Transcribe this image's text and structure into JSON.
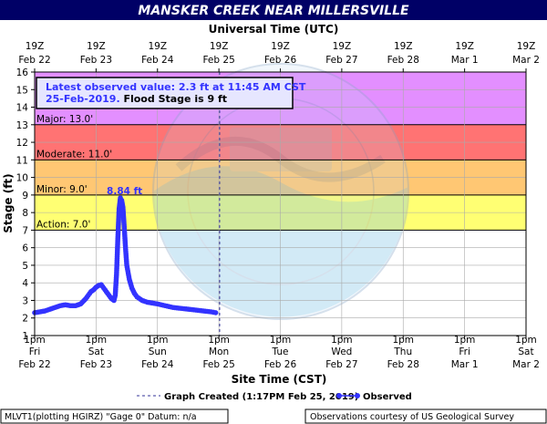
{
  "chart_data": {
    "type": "line",
    "title": "MANSKER CREEK NEAR MILLERSVILLE",
    "top_axis_title": "Universal Time (UTC)",
    "xlabel": "Site Time (CST)",
    "ylabel": "Stage (ft)",
    "ylim": [
      1,
      16
    ],
    "y_ticks": [
      1,
      2,
      3,
      4,
      5,
      6,
      7,
      8,
      9,
      10,
      11,
      12,
      13,
      14,
      15,
      16
    ],
    "xlim": [
      "2019-02-22 13:00",
      "2019-03-02 13:00"
    ],
    "grid": true,
    "top_ticks": [
      {
        "t": "2019-02-22 13:00",
        "l1": "19Z",
        "l2": "Feb 22"
      },
      {
        "t": "2019-02-23 13:00",
        "l1": "19Z",
        "l2": "Feb 23"
      },
      {
        "t": "2019-02-24 13:00",
        "l1": "19Z",
        "l2": "Feb 24"
      },
      {
        "t": "2019-02-25 13:00",
        "l1": "19Z",
        "l2": "Feb 25"
      },
      {
        "t": "2019-02-26 13:00",
        "l1": "19Z",
        "l2": "Feb 26"
      },
      {
        "t": "2019-02-27 13:00",
        "l1": "19Z",
        "l2": "Feb 27"
      },
      {
        "t": "2019-02-28 13:00",
        "l1": "19Z",
        "l2": "Feb 28"
      },
      {
        "t": "2019-03-01 13:00",
        "l1": "19Z",
        "l2": "Mar  1"
      },
      {
        "t": "2019-03-02 13:00",
        "l1": "19Z",
        "l2": "Mar  2"
      }
    ],
    "bottom_ticks": [
      {
        "t": "2019-02-22 13:00",
        "l1": "1pm",
        "l2": "Fri",
        "l3": "Feb 22"
      },
      {
        "t": "2019-02-23 13:00",
        "l1": "1pm",
        "l2": "Sat",
        "l3": "Feb 23"
      },
      {
        "t": "2019-02-24 13:00",
        "l1": "1pm",
        "l2": "Sun",
        "l3": "Feb 24"
      },
      {
        "t": "2019-02-25 13:00",
        "l1": "1pm",
        "l2": "Mon",
        "l3": "Feb 25"
      },
      {
        "t": "2019-02-26 13:00",
        "l1": "1pm",
        "l2": "Tue",
        "l3": "Feb 26"
      },
      {
        "t": "2019-02-27 13:00",
        "l1": "1pm",
        "l2": "Wed",
        "l3": "Feb 27"
      },
      {
        "t": "2019-02-28 13:00",
        "l1": "1pm",
        "l2": "Thu",
        "l3": "Feb 28"
      },
      {
        "t": "2019-03-01 13:00",
        "l1": "1pm",
        "l2": "Fri",
        "l3": "Mar  1"
      },
      {
        "t": "2019-03-02 13:00",
        "l1": "1pm",
        "l2": "Sat",
        "l3": "Mar  2"
      }
    ],
    "bands": [
      {
        "name": "Action",
        "label": "Action: 7.0'",
        "from": 7,
        "to": 9,
        "color": "#ffff00"
      },
      {
        "name": "Minor",
        "label": "Minor: 9.0'",
        "from": 9,
        "to": 11,
        "color": "#ff9900"
      },
      {
        "name": "Moderate",
        "label": "Moderate: 11.0'",
        "from": 11,
        "to": 13,
        "color": "#ff0000"
      },
      {
        "name": "Major",
        "label": "Major: 13.0'",
        "from": 13,
        "to": 16,
        "color": "#cc33ff"
      }
    ],
    "latest_box": {
      "line1": "Latest observed value: 2.3  ft at 11:45 AM CST",
      "line2_date": "25-Feb-2019.",
      "line2_rest": "  Flood Stage is 9 ft"
    },
    "peak_label": "8.84 ft",
    "graph_created_time": "2019-02-25 13:17",
    "series": [
      {
        "name": "Observed",
        "color": "#3333ff",
        "points": [
          [
            "2019-02-22 13:00",
            2.3
          ],
          [
            "2019-02-22 15:00",
            2.35
          ],
          [
            "2019-02-22 17:00",
            2.4
          ],
          [
            "2019-02-22 19:00",
            2.5
          ],
          [
            "2019-02-22 21:00",
            2.6
          ],
          [
            "2019-02-22 23:00",
            2.7
          ],
          [
            "2019-02-23 01:00",
            2.75
          ],
          [
            "2019-02-23 03:00",
            2.7
          ],
          [
            "2019-02-23 05:00",
            2.7
          ],
          [
            "2019-02-23 07:00",
            2.8
          ],
          [
            "2019-02-23 09:00",
            3.1
          ],
          [
            "2019-02-23 10:00",
            3.3
          ],
          [
            "2019-02-23 11:00",
            3.5
          ],
          [
            "2019-02-23 12:00",
            3.6
          ],
          [
            "2019-02-23 13:00",
            3.75
          ],
          [
            "2019-02-23 14:00",
            3.85
          ],
          [
            "2019-02-23 15:00",
            3.9
          ],
          [
            "2019-02-23 16:00",
            3.7
          ],
          [
            "2019-02-23 17:00",
            3.5
          ],
          [
            "2019-02-23 18:00",
            3.3
          ],
          [
            "2019-02-23 19:00",
            3.1
          ],
          [
            "2019-02-23 20:00",
            3.0
          ],
          [
            "2019-02-23 20:30",
            3.3
          ],
          [
            "2019-02-23 21:00",
            4.5
          ],
          [
            "2019-02-23 21:30",
            6.5
          ],
          [
            "2019-02-23 22:00",
            8.2
          ],
          [
            "2019-02-23 22:30",
            8.84
          ],
          [
            "2019-02-23 23:00",
            8.7
          ],
          [
            "2019-02-23 23:30",
            8.3
          ],
          [
            "2019-02-24 00:00",
            7.2
          ],
          [
            "2019-02-24 00:30",
            6.0
          ],
          [
            "2019-02-24 01:00",
            5.0
          ],
          [
            "2019-02-24 02:00",
            4.2
          ],
          [
            "2019-02-24 03:00",
            3.7
          ],
          [
            "2019-02-24 04:00",
            3.4
          ],
          [
            "2019-02-24 05:00",
            3.2
          ],
          [
            "2019-02-24 07:00",
            3.0
          ],
          [
            "2019-02-24 09:00",
            2.9
          ],
          [
            "2019-02-24 11:00",
            2.85
          ],
          [
            "2019-02-24 13:00",
            2.8
          ],
          [
            "2019-02-24 16:00",
            2.7
          ],
          [
            "2019-02-24 19:00",
            2.6
          ],
          [
            "2019-02-24 22:00",
            2.55
          ],
          [
            "2019-02-25 01:00",
            2.5
          ],
          [
            "2019-02-25 04:00",
            2.45
          ],
          [
            "2019-02-25 07:00",
            2.4
          ],
          [
            "2019-02-25 10:00",
            2.35
          ],
          [
            "2019-02-25 11:45",
            2.3
          ]
        ]
      }
    ]
  },
  "legend": {
    "graph_created": "Graph Created (1:17PM Feb 25, 2019)",
    "observed": "Observed"
  },
  "footer": {
    "left": "MLVT1(plotting HGIRZ) \"Gage 0\" Datum: n/a",
    "right": "Observations courtesy of US Geological Survey"
  },
  "colors": {
    "title_bar": "#000066",
    "observed": "#3333ff",
    "box_text": "#3333ff"
  }
}
